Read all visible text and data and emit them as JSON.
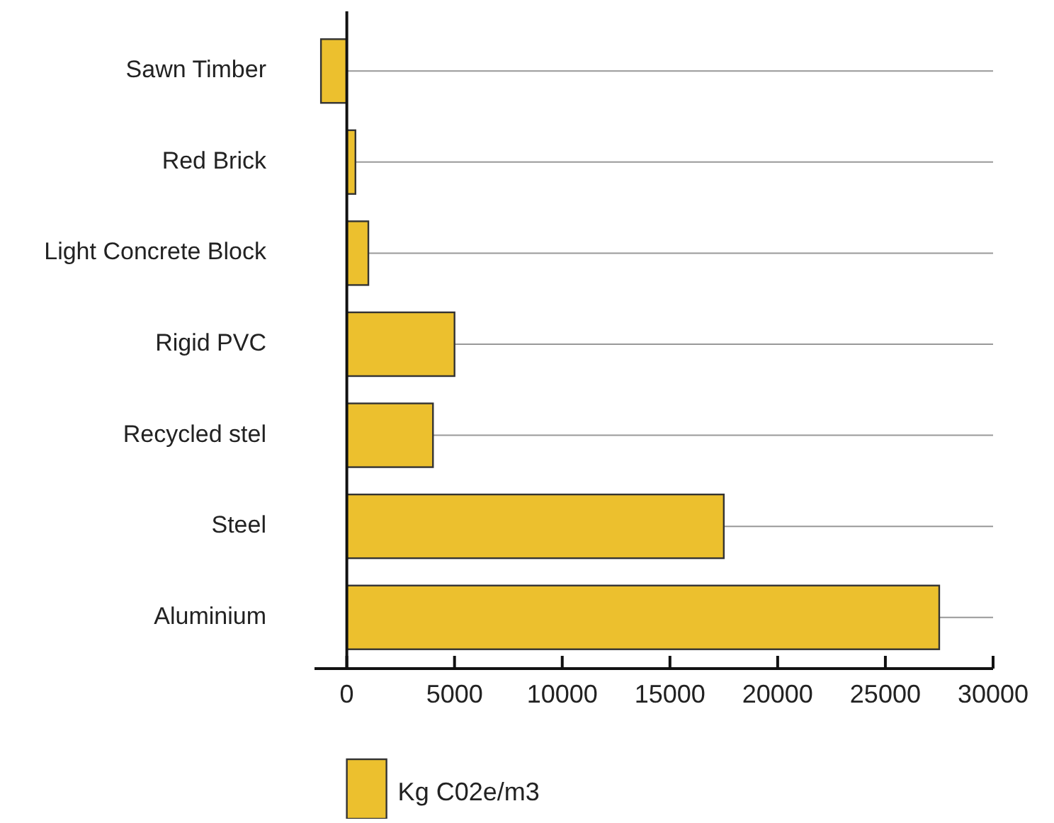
{
  "chart_data": {
    "type": "bar",
    "orientation": "horizontal",
    "categories": [
      "Sawn Timber",
      "Red Brick",
      "Light Concrete Block",
      "Rigid PVC",
      "Recycled stel",
      "Steel",
      "Aluminium"
    ],
    "series": [
      {
        "name": "Kg C02e/m3",
        "color": "#ecc02e",
        "values": [
          -1200,
          400,
          1000,
          5000,
          4000,
          17500,
          27500
        ]
      }
    ],
    "xlim": [
      -1500,
      30000
    ],
    "xticks": [
      0,
      5000,
      10000,
      15000,
      20000,
      25000,
      30000
    ],
    "grid": "y",
    "legend": "bottom"
  }
}
